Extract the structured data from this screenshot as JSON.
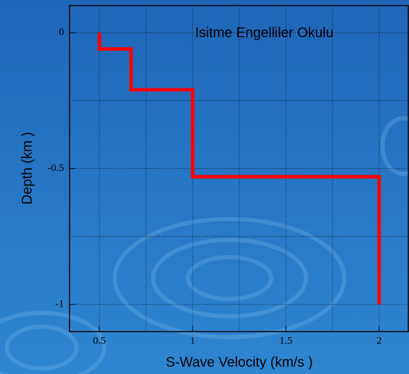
{
  "chart_data": {
    "type": "line",
    "title": "Isitme Engelliler Okulu",
    "x_label": "S-Wave Velocity    (km/s )",
    "y_label": "Depth    (km )",
    "x": [
      0.5,
      0.5,
      0.67,
      0.67,
      1,
      1,
      2,
      2
    ],
    "series": [
      {
        "color": "#ff0000",
        "values": [
          0,
          -0.06,
          -0.06,
          -0.21,
          -0.21,
          -0.53,
          -0.53,
          -1
        ]
      }
    ],
    "xlim": [
      0.34,
      2.16
    ],
    "ylim": [
      -1.1,
      0.1
    ],
    "xticks": [
      0.5,
      1,
      1.5,
      2
    ],
    "yticks": [
      0,
      -0.5,
      -1
    ],
    "xgrid": [
      0.75,
      1.25,
      1.75
    ],
    "ygrid": [
      -0.25,
      -0.75
    ],
    "grid": true
  }
}
